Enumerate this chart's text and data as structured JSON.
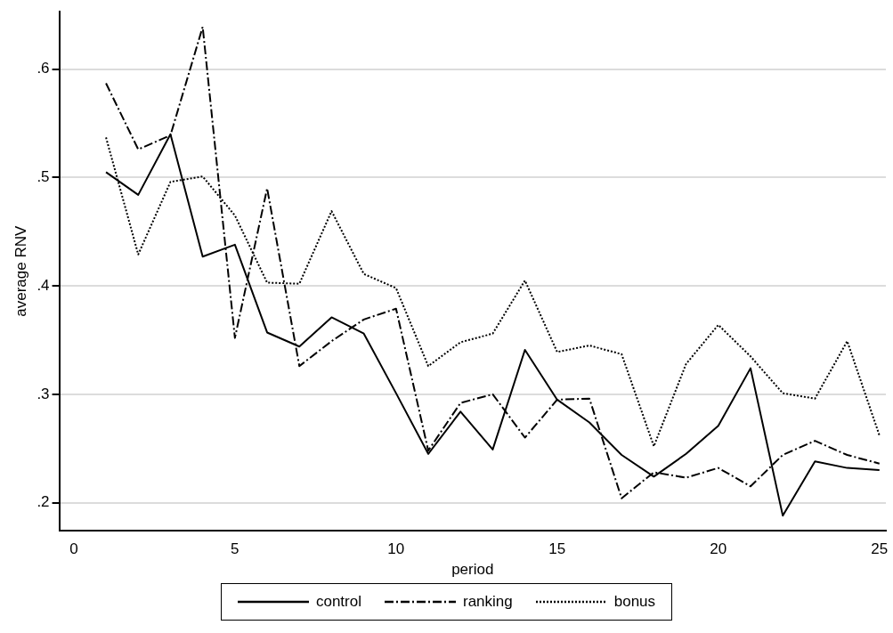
{
  "chart_data": {
    "type": "line",
    "xlabel": "period",
    "ylabel": "average RNV",
    "x": [
      1,
      2,
      3,
      4,
      5,
      6,
      7,
      8,
      9,
      10,
      11,
      12,
      13,
      14,
      15,
      16,
      17,
      18,
      19,
      20,
      21,
      22,
      23,
      24,
      25
    ],
    "series": [
      {
        "name": "control",
        "color": "#000000",
        "line_style": "solid",
        "values": [
          0.505,
          0.484,
          0.54,
          0.427,
          0.438,
          0.357,
          0.344,
          0.371,
          0.356,
          0.301,
          0.245,
          0.284,
          0.249,
          0.341,
          0.295,
          0.274,
          0.244,
          0.224,
          0.245,
          0.271,
          0.324,
          0.188,
          0.238,
          0.232,
          0.23
        ]
      },
      {
        "name": "ranking",
        "color": "#000000",
        "line_style": "dashdot",
        "values": [
          0.587,
          0.526,
          0.539,
          0.639,
          0.352,
          0.49,
          0.326,
          0.349,
          0.369,
          0.379,
          0.248,
          0.292,
          0.3,
          0.26,
          0.295,
          0.296,
          0.204,
          0.228,
          0.223,
          0.232,
          0.215,
          0.244,
          0.257,
          0.244,
          0.236
        ]
      },
      {
        "name": "bonus",
        "color": "#000000",
        "line_style": "dotted",
        "values": [
          0.537,
          0.429,
          0.496,
          0.501,
          0.465,
          0.403,
          0.402,
          0.469,
          0.411,
          0.398,
          0.326,
          0.348,
          0.356,
          0.405,
          0.339,
          0.345,
          0.337,
          0.252,
          0.328,
          0.364,
          0.335,
          0.301,
          0.296,
          0.349,
          0.262
        ]
      }
    ],
    "xlim": [
      -0.45,
      25.2
    ],
    "xticks": [
      0,
      5,
      10,
      15,
      20,
      25
    ],
    "ylim": [
      0.174,
      0.653
    ],
    "yticks": [
      {
        "value": 0.2,
        "label": ".2"
      },
      {
        "value": 0.3,
        "label": ".3"
      },
      {
        "value": 0.4,
        "label": ".4"
      },
      {
        "value": 0.5,
        "label": ".5"
      },
      {
        "value": 0.6,
        "label": ".6"
      }
    ],
    "grid": "y",
    "legend": "bottom",
    "marker": "none"
  }
}
